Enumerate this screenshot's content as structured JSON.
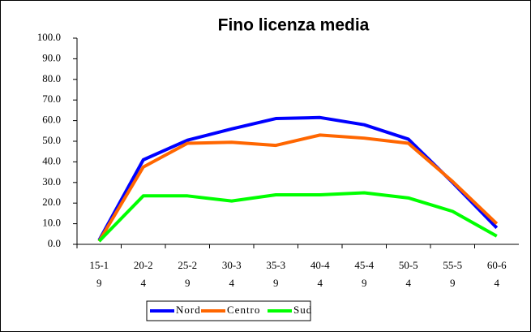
{
  "chart_data": {
    "type": "line",
    "title": "Fino licenza media",
    "categories": [
      "15-19",
      "20-24",
      "25-29",
      "30-34",
      "35-39",
      "40-44",
      "45-49",
      "50-54",
      "55-59",
      "60-64"
    ],
    "series": [
      {
        "name": "Nord",
        "color": "#0000ff",
        "values": [
          2,
          41,
          50.5,
          56,
          61,
          61.5,
          58,
          51,
          30,
          8
        ]
      },
      {
        "name": "Centro",
        "color": "#ff6600",
        "values": [
          1.5,
          37.5,
          49,
          49.5,
          48,
          53,
          51.5,
          49,
          30.5,
          10
        ]
      },
      {
        "name": "Sud",
        "color": "#00ff00",
        "values": [
          1.5,
          23.5,
          23.5,
          21,
          24,
          24,
          25,
          22.5,
          16,
          4
        ]
      }
    ],
    "ylim": [
      0,
      100
    ],
    "yticks": [
      {
        "value": 0,
        "label": "0.0"
      },
      {
        "value": 10,
        "label": "10.0"
      },
      {
        "value": 20,
        "label": "20.0"
      },
      {
        "value": 30,
        "label": "30.0"
      },
      {
        "value": 40,
        "label": "40.0"
      },
      {
        "value": 50,
        "label": "50.0"
      },
      {
        "value": 60,
        "label": "60.0"
      },
      {
        "value": 70,
        "label": "70.0"
      },
      {
        "value": 80,
        "label": "80.0"
      },
      {
        "value": 90,
        "label": "90.0"
      },
      {
        "value": 100,
        "label": "100.0"
      }
    ],
    "legend": "bottom"
  }
}
